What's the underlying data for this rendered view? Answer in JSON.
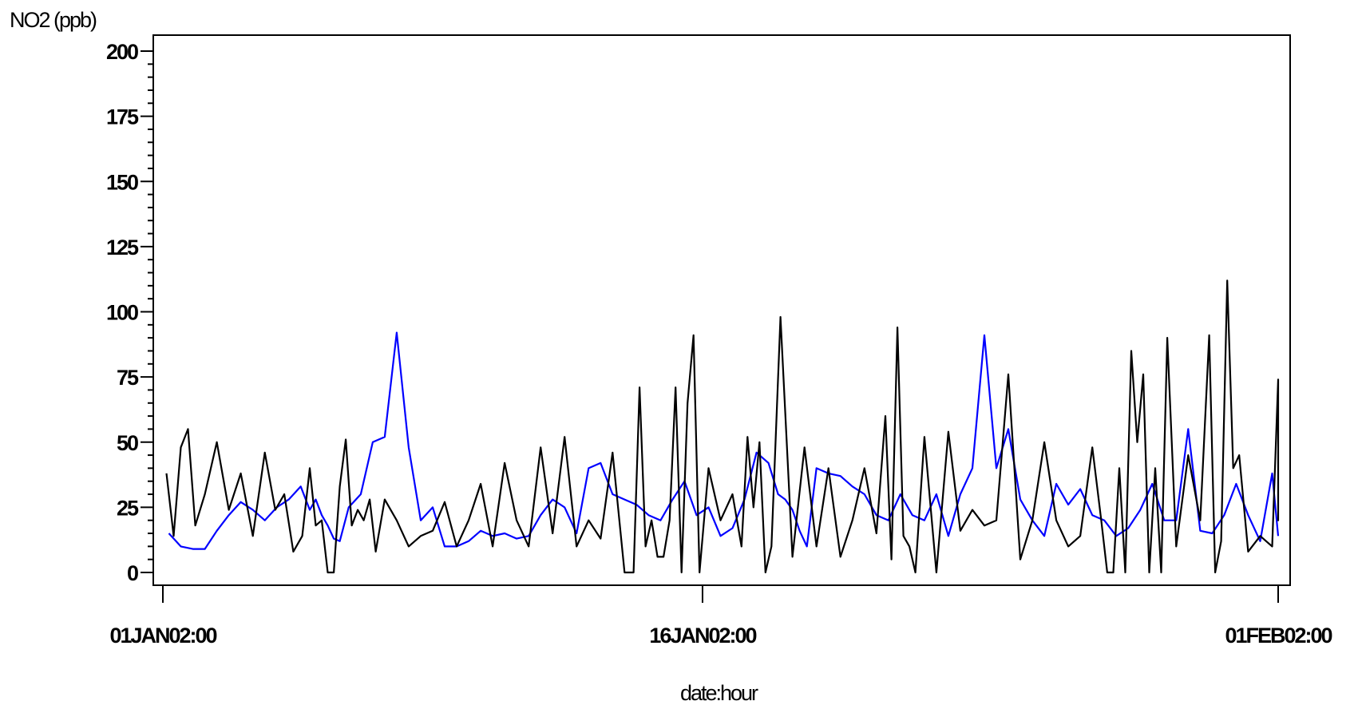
{
  "chart_data": {
    "type": "line",
    "ylabel": "NO2  (ppb)",
    "xlabel": "date:hour",
    "ylim": [
      0,
      200
    ],
    "y_major_ticks": [
      0,
      25,
      50,
      75,
      100,
      125,
      150,
      175,
      200
    ],
    "y_tick_labels": [
      "0",
      "25",
      "50",
      "75",
      "100",
      "125",
      "150",
      "175",
      "200"
    ],
    "x_tick_labels": [
      "01JAN02:00",
      "16JAN02:00",
      "01FEB02:00"
    ],
    "x_tick_dates": [
      "2002-01-01",
      "2002-01-16",
      "2002-02-01"
    ],
    "grid": false,
    "series": [
      {
        "color": "#0000ff",
        "x": [
          "2002-01-01",
          "2002-01-01",
          "2002-01-01",
          "2002-01-02",
          "2002-01-02",
          "2002-01-02",
          "2002-01-03",
          "2002-01-03",
          "2002-01-03",
          "2002-01-04",
          "2002-01-04",
          "2002-01-04",
          "2002-01-05",
          "2002-01-05",
          "2002-01-05",
          "2002-01-05",
          "2002-01-05",
          "2002-01-05",
          "2002-01-06",
          "2002-01-06",
          "2002-01-06",
          "2002-01-07",
          "2002-01-07",
          "2002-01-07",
          "2002-01-08",
          "2002-01-08",
          "2002-01-08",
          "2002-01-09",
          "2002-01-09",
          "2002-01-09",
          "2002-01-10",
          "2002-01-10",
          "2002-01-10",
          "2002-01-11",
          "2002-01-11",
          "2002-01-11",
          "2002-01-12",
          "2002-01-12",
          "2002-01-12",
          "2002-01-13",
          "2002-01-13",
          "2002-01-13",
          "2002-01-14",
          "2002-01-14",
          "2002-01-14",
          "2002-01-15",
          "2002-01-15",
          "2002-01-15",
          "2002-01-16",
          "2002-01-16",
          "2002-01-16",
          "2002-01-17",
          "2002-01-17",
          "2002-01-17",
          "2002-01-18",
          "2002-01-18",
          "2002-01-18",
          "2002-01-18",
          "2002-01-18",
          "2002-01-19",
          "2002-01-19",
          "2002-01-19",
          "2002-01-20",
          "2002-01-20",
          "2002-01-20",
          "2002-01-21",
          "2002-01-21",
          "2002-01-21",
          "2002-01-22",
          "2002-01-22",
          "2002-01-22",
          "2002-01-23",
          "2002-01-23",
          "2002-01-23",
          "2002-01-24",
          "2002-01-24",
          "2002-01-24",
          "2002-01-25",
          "2002-01-25",
          "2002-01-25",
          "2002-01-26",
          "2002-01-26",
          "2002-01-26",
          "2002-01-27",
          "2002-01-27",
          "2002-01-27",
          "2002-01-28",
          "2002-01-28",
          "2002-01-28",
          "2002-01-29",
          "2002-01-29",
          "2002-01-29",
          "2002-01-30",
          "2002-01-30",
          "2002-01-30",
          "2002-01-31",
          "2002-01-31",
          "2002-01-31",
          "2002-02-01"
        ],
        "values": [
          15,
          10,
          9,
          9,
          16,
          22,
          27,
          24,
          20,
          25,
          28,
          33,
          24,
          28,
          22,
          18,
          13,
          12,
          25,
          30,
          50,
          52,
          92,
          48,
          20,
          25,
          10,
          10,
          12,
          16,
          14,
          15,
          13,
          14,
          22,
          28,
          25,
          15,
          40,
          42,
          30,
          28,
          26,
          22,
          20,
          28,
          35,
          22,
          25,
          14,
          17,
          28,
          46,
          42,
          30,
          28,
          24,
          16,
          10,
          40,
          38,
          37,
          33,
          30,
          22,
          20,
          30,
          22,
          20,
          30,
          14,
          30,
          40,
          91,
          40,
          55,
          28,
          20,
          14,
          34,
          26,
          32,
          22,
          20,
          14,
          17,
          24,
          34,
          20,
          20,
          55,
          16,
          15,
          22,
          34,
          22,
          12,
          38,
          14
        ]
      },
      {
        "color": "#000000",
        "x": [
          "2002-01-01",
          "2002-01-01",
          "2002-01-01",
          "2002-01-01",
          "2002-01-01",
          "2002-01-02",
          "2002-01-02",
          "2002-01-02",
          "2002-01-03",
          "2002-01-03",
          "2002-01-03",
          "2002-01-04",
          "2002-01-04",
          "2002-01-04",
          "2002-01-04",
          "2002-01-05",
          "2002-01-05",
          "2002-01-05",
          "2002-01-05",
          "2002-01-05",
          "2002-01-05",
          "2002-01-06",
          "2002-01-06",
          "2002-01-06",
          "2002-01-06",
          "2002-01-06",
          "2002-01-06",
          "2002-01-07",
          "2002-01-07",
          "2002-01-07",
          "2002-01-08",
          "2002-01-08",
          "2002-01-08",
          "2002-01-09",
          "2002-01-09",
          "2002-01-09",
          "2002-01-10",
          "2002-01-10",
          "2002-01-10",
          "2002-01-11",
          "2002-01-11",
          "2002-01-11",
          "2002-01-12",
          "2002-01-12",
          "2002-01-12",
          "2002-01-13",
          "2002-01-13",
          "2002-01-13",
          "2002-01-14",
          "2002-01-14",
          "2002-01-14",
          "2002-01-14",
          "2002-01-14",
          "2002-01-14",
          "2002-01-15",
          "2002-01-15",
          "2002-01-15",
          "2002-01-15",
          "2002-01-15",
          "2002-01-15",
          "2002-01-16",
          "2002-01-16",
          "2002-01-16",
          "2002-01-17",
          "2002-01-17",
          "2002-01-17",
          "2002-01-17",
          "2002-01-17",
          "2002-01-17",
          "2002-01-18",
          "2002-01-18",
          "2002-01-18",
          "2002-01-19",
          "2002-01-19",
          "2002-01-19",
          "2002-01-20",
          "2002-01-20",
          "2002-01-20",
          "2002-01-21",
          "2002-01-21",
          "2002-01-21",
          "2002-01-21",
          "2002-01-21",
          "2002-01-21",
          "2002-01-22",
          "2002-01-22",
          "2002-01-22",
          "2002-01-23",
          "2002-01-23",
          "2002-01-23",
          "2002-01-24",
          "2002-01-24",
          "2002-01-24",
          "2002-01-25",
          "2002-01-25",
          "2002-01-25",
          "2002-01-26",
          "2002-01-26",
          "2002-01-26",
          "2002-01-27",
          "2002-01-27",
          "2002-01-27",
          "2002-01-27",
          "2002-01-27",
          "2002-01-27",
          "2002-01-28",
          "2002-01-28",
          "2002-01-28",
          "2002-01-28",
          "2002-01-28",
          "2002-01-28",
          "2002-01-29",
          "2002-01-29",
          "2002-01-29",
          "2002-01-30",
          "2002-01-30",
          "2002-01-30",
          "2002-01-30",
          "2002-01-30",
          "2002-01-30",
          "2002-01-31",
          "2002-01-31",
          "2002-01-31",
          "2002-02-01",
          "2002-02-01",
          "2002-02-01"
        ],
        "values": [
          38,
          14,
          48,
          55,
          18,
          30,
          50,
          24,
          38,
          14,
          46,
          24,
          30,
          8,
          14,
          40,
          18,
          20,
          0,
          0,
          33,
          51,
          18,
          24,
          20,
          28,
          8,
          28,
          20,
          10,
          14,
          16,
          27,
          10,
          20,
          34,
          10,
          42,
          20,
          10,
          48,
          15,
          52,
          10,
          20,
          13,
          46,
          0,
          0,
          71,
          10,
          20,
          6,
          6,
          20,
          71,
          0,
          65,
          91,
          0,
          40,
          20,
          30,
          10,
          52,
          25,
          50,
          0,
          10,
          98,
          6,
          48,
          10,
          40,
          6,
          20,
          40,
          15,
          60,
          5,
          94,
          14,
          10,
          0,
          52,
          0,
          54,
          16,
          24,
          18,
          20,
          76,
          5,
          20,
          50,
          20,
          10,
          14,
          48,
          20,
          0,
          0,
          40,
          0,
          85,
          50,
          76,
          0,
          40,
          0,
          90,
          10,
          45,
          20,
          91,
          0,
          12,
          112,
          40,
          45,
          8,
          14,
          10,
          74,
          20,
          47
        ]
      }
    ]
  }
}
